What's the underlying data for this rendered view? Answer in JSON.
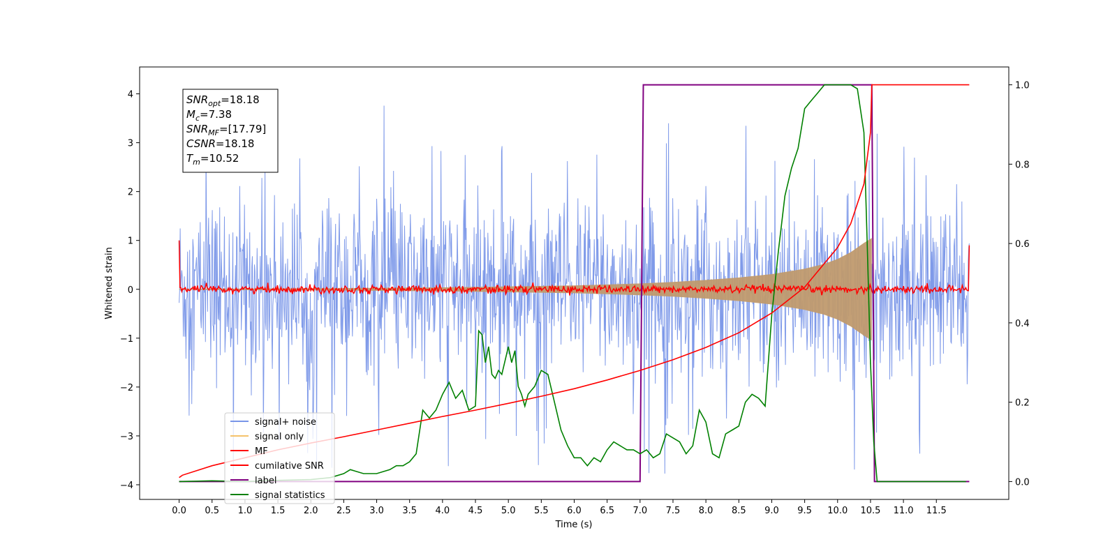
{
  "chart_data": {
    "type": "line",
    "title": "",
    "xlabel": "Time (s)",
    "ylabel": "Whitened strain",
    "xlim": [
      -0.6,
      12.6
    ],
    "ylim": [
      -4.3,
      4.55
    ],
    "ylim_right": [
      -0.045,
      1.045
    ],
    "x_ticks": [
      0.0,
      0.5,
      1.0,
      1.5,
      2.0,
      2.5,
      3.0,
      3.5,
      4.0,
      4.5,
      5.0,
      5.5,
      6.0,
      6.5,
      7.0,
      7.5,
      8.0,
      8.5,
      9.0,
      9.5,
      10.0,
      10.5,
      11.0,
      11.5
    ],
    "x_tick_labels": [
      "0.0",
      "0.5",
      "1.0",
      "1.5",
      "2.0",
      "2.5",
      "3.0",
      "3.5",
      "4.0",
      "4.5",
      "5.0",
      "5.5",
      "6.0",
      "6.5",
      "7.0",
      "7.5",
      "8.0",
      "8.5",
      "9.0",
      "9.5",
      "10.0",
      "10.5",
      "11.0",
      "11.5"
    ],
    "y_ticks": [
      -4,
      -3,
      -2,
      -1,
      0,
      1,
      2,
      3,
      4
    ],
    "y_tick_labels": [
      "−4",
      "−3",
      "−2",
      "−1",
      "0",
      "1",
      "2",
      "3",
      "4"
    ],
    "y_ticks_right": [
      0.0,
      0.2,
      0.4,
      0.6,
      0.8,
      1.0
    ],
    "y_tick_labels_right": [
      "0.0",
      "0.2",
      "0.4",
      "0.6",
      "0.8",
      "1.0"
    ],
    "grid": false,
    "legend_position": "lower-left",
    "legend": [
      {
        "label": "signal+ noise",
        "color": "#7895e8"
      },
      {
        "label": "signal only",
        "color": "#f5c26b"
      },
      {
        "label": "MF",
        "color": "#ff0000"
      },
      {
        "label": "cumilative SNR",
        "color": "#ff0000"
      },
      {
        "label": "label",
        "color": "#800080"
      },
      {
        "label": "signal statistics",
        "color": "#008000"
      }
    ],
    "annotations": [
      {
        "base": "SNR",
        "sub": "opt",
        "rest": "=18.18"
      },
      {
        "base": "M",
        "sub": "c",
        "rest": "=7.38"
      },
      {
        "base": "SNR",
        "sub": "MF",
        "rest": "=[17.79]"
      },
      {
        "base": "CSNR",
        "sub": "",
        "rest": "=18.18"
      },
      {
        "base": "T",
        "sub": "m",
        "rest": "=10.52"
      }
    ],
    "series": [
      {
        "name": "signal+ noise",
        "axis": "left",
        "color": "#7895e8",
        "x_range": [
          0.0,
          12.0
        ],
        "typical_band": [
          -1.7,
          1.7
        ],
        "peak_range": [
          -3.85,
          4.15
        ]
      },
      {
        "name": "signal only",
        "axis": "left",
        "color": "#f5c26b",
        "x_range": [
          0.0,
          12.0
        ],
        "envelope_x": [
          0.0,
          2.0,
          4.0,
          5.0,
          6.0,
          7.0,
          7.5,
          8.0,
          8.5,
          9.0,
          9.5,
          9.8,
          10.0,
          10.2,
          10.4,
          10.52
        ],
        "envelope_amp": [
          0.01,
          0.02,
          0.04,
          0.06,
          0.08,
          0.12,
          0.15,
          0.19,
          0.24,
          0.31,
          0.42,
          0.52,
          0.62,
          0.76,
          0.95,
          1.05
        ]
      },
      {
        "name": "MF",
        "axis": "left",
        "color": "#ff0000",
        "x_range": [
          0.0,
          12.0
        ],
        "baseline": 0.0,
        "noise_amplitude": 0.08,
        "edge_values": [
          1.0,
          0.9
        ]
      },
      {
        "name": "cumilative SNR",
        "axis": "right",
        "color": "#ff0000",
        "x": [
          0.0,
          0.05,
          0.5,
          1.0,
          1.5,
          2.0,
          2.5,
          3.0,
          3.5,
          4.0,
          4.5,
          5.0,
          5.5,
          6.0,
          6.5,
          7.0,
          7.5,
          8.0,
          8.5,
          9.0,
          9.5,
          10.0,
          10.2,
          10.4,
          10.5,
          10.52,
          12.0
        ],
        "y": [
          0.01,
          0.016,
          0.04,
          0.06,
          0.08,
          0.097,
          0.113,
          0.13,
          0.147,
          0.164,
          0.18,
          0.197,
          0.215,
          0.234,
          0.256,
          0.28,
          0.307,
          0.338,
          0.375,
          0.425,
          0.49,
          0.59,
          0.65,
          0.75,
          0.88,
          1.0,
          1.0
        ]
      },
      {
        "name": "label",
        "axis": "right",
        "color": "#800080",
        "x": [
          0.0,
          7.0,
          7.05,
          10.52,
          10.56,
          12.0
        ],
        "y": [
          0.0,
          0.0,
          1.0,
          1.0,
          0.0,
          0.0
        ]
      },
      {
        "name": "signal statistics",
        "axis": "right",
        "color": "#008000",
        "x": [
          0.0,
          0.5,
          1.0,
          1.5,
          2.0,
          2.3,
          2.5,
          2.6,
          2.8,
          3.0,
          3.2,
          3.3,
          3.4,
          3.5,
          3.6,
          3.7,
          3.8,
          3.9,
          4.0,
          4.1,
          4.2,
          4.3,
          4.4,
          4.5,
          4.55,
          4.6,
          4.65,
          4.7,
          4.75,
          4.8,
          4.85,
          4.9,
          5.0,
          5.05,
          5.1,
          5.15,
          5.2,
          5.25,
          5.3,
          5.4,
          5.5,
          5.6,
          5.7,
          5.8,
          5.9,
          6.0,
          6.1,
          6.2,
          6.3,
          6.4,
          6.5,
          6.6,
          6.7,
          6.8,
          6.9,
          7.0,
          7.1,
          7.2,
          7.3,
          7.4,
          7.5,
          7.6,
          7.7,
          7.8,
          7.9,
          8.0,
          8.1,
          8.2,
          8.3,
          8.4,
          8.5,
          8.6,
          8.7,
          8.8,
          8.9,
          9.0,
          9.1,
          9.2,
          9.3,
          9.4,
          9.5,
          9.6,
          9.7,
          9.8,
          10.0,
          10.2,
          10.3,
          10.4,
          10.45,
          10.5,
          10.55,
          10.6,
          11.0,
          11.5,
          11.95
        ],
        "y": [
          0.0,
          0.002,
          0.0,
          0.003,
          0.005,
          0.01,
          0.02,
          0.03,
          0.02,
          0.02,
          0.03,
          0.04,
          0.04,
          0.05,
          0.07,
          0.18,
          0.16,
          0.18,
          0.22,
          0.25,
          0.21,
          0.23,
          0.18,
          0.19,
          0.38,
          0.37,
          0.3,
          0.34,
          0.27,
          0.26,
          0.28,
          0.27,
          0.34,
          0.3,
          0.33,
          0.24,
          0.22,
          0.19,
          0.22,
          0.24,
          0.28,
          0.27,
          0.2,
          0.13,
          0.09,
          0.06,
          0.06,
          0.04,
          0.06,
          0.05,
          0.08,
          0.1,
          0.09,
          0.08,
          0.08,
          0.07,
          0.08,
          0.06,
          0.07,
          0.12,
          0.11,
          0.1,
          0.07,
          0.09,
          0.18,
          0.15,
          0.07,
          0.06,
          0.12,
          0.13,
          0.14,
          0.2,
          0.22,
          0.21,
          0.19,
          0.42,
          0.58,
          0.72,
          0.79,
          0.84,
          0.94,
          0.96,
          0.98,
          1.0,
          1.0,
          1.0,
          0.99,
          0.88,
          0.6,
          0.3,
          0.1,
          0.0,
          0.0,
          0.0,
          0.0
        ]
      }
    ]
  }
}
